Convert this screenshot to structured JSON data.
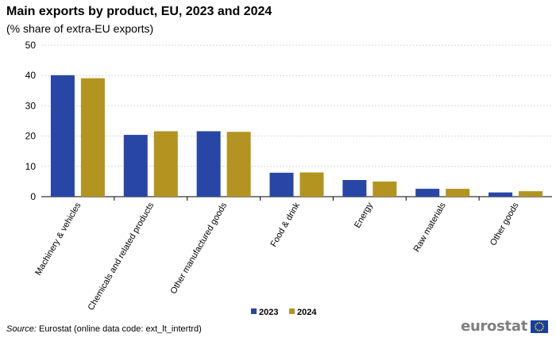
{
  "chart_data": {
    "type": "bar",
    "title": "Main exports by product, EU, 2023 and 2024",
    "subtitle": "(% share of extra-EU exports)",
    "categories": [
      "Machinery & vehicles",
      "Chemicals and related products",
      "Other manufactured goods",
      "Food & drink",
      "Energy",
      "Raw materials",
      "Other goods"
    ],
    "series": [
      {
        "name": "2023",
        "color": "#2846a6",
        "values": [
          40.1,
          20.4,
          21.6,
          7.9,
          5.5,
          2.6,
          1.4
        ]
      },
      {
        "name": "2024",
        "color": "#b39420",
        "values": [
          39.1,
          21.6,
          21.4,
          8.0,
          5.0,
          2.6,
          1.8
        ]
      }
    ],
    "ylim": [
      0,
      50
    ],
    "yticks": [
      "0",
      "10",
      "20",
      "30",
      "40",
      "50"
    ],
    "xlabel": "",
    "ylabel": "",
    "legend_position": "bottom-center",
    "grid": true
  },
  "source": {
    "label": "Source:",
    "text": " Eurostat (online data code: ext_lt_intertrd)"
  },
  "logo": {
    "text": "eurostat",
    "flag_color": "#173ea4",
    "star_color": "#ffdd00"
  }
}
